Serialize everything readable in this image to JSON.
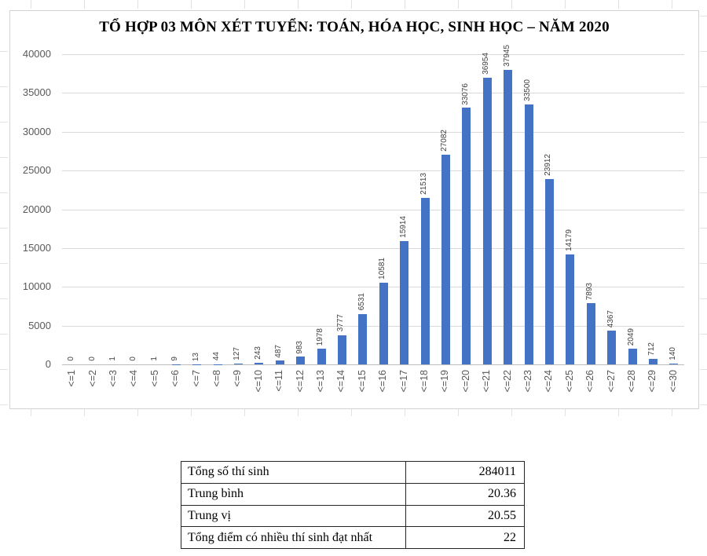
{
  "chart_data": {
    "type": "bar",
    "title": "TỔ HỢP 03 MÔN XÉT TUYỂN: TOÁN, HÓA HỌC, SINH HỌC – NĂM 2020",
    "categories": [
      "<=1",
      "<=2",
      "<=3",
      "<=4",
      "<=5",
      "<=6",
      "<=7",
      "<=8",
      "<=9",
      "<=10",
      "<=11",
      "<=12",
      "<=13",
      "<=14",
      "<=15",
      "<=16",
      "<=17",
      "<=18",
      "<=19",
      "<=20",
      "<=21",
      "<=22",
      "<=23",
      "<=24",
      "<=25",
      "<=26",
      "<=27",
      "<=28",
      "<=29",
      "<=30"
    ],
    "values": [
      0,
      0,
      1,
      0,
      1,
      9,
      13,
      44,
      127,
      243,
      487,
      983,
      1978,
      3777,
      6531,
      10581,
      15914,
      21513,
      27082,
      33076,
      36954,
      37945,
      33500,
      23912,
      14179,
      7893,
      4367,
      2049,
      712,
      140
    ],
    "xlabel": "",
    "ylabel": "",
    "ylim": [
      0,
      40000
    ],
    "yticks": [
      0,
      5000,
      10000,
      15000,
      20000,
      25000,
      30000,
      35000,
      40000
    ],
    "grid": true,
    "legend_position": "none",
    "data_labels": "rotated-90-above-bars",
    "bar_color": "#4472C4",
    "gridline_color": "#d9d9d9",
    "axis_text_color": "#595959",
    "data_label_color": "#404040"
  },
  "summary_table": {
    "rows": [
      {
        "label": "Tổng số thí sinh",
        "value": "284011"
      },
      {
        "label": "Trung bình",
        "value": "20.36"
      },
      {
        "label": "Trung vị",
        "value": "20.55"
      },
      {
        "label": "Tổng điểm có nhiều thí sinh đạt nhất",
        "value": "22"
      }
    ]
  }
}
